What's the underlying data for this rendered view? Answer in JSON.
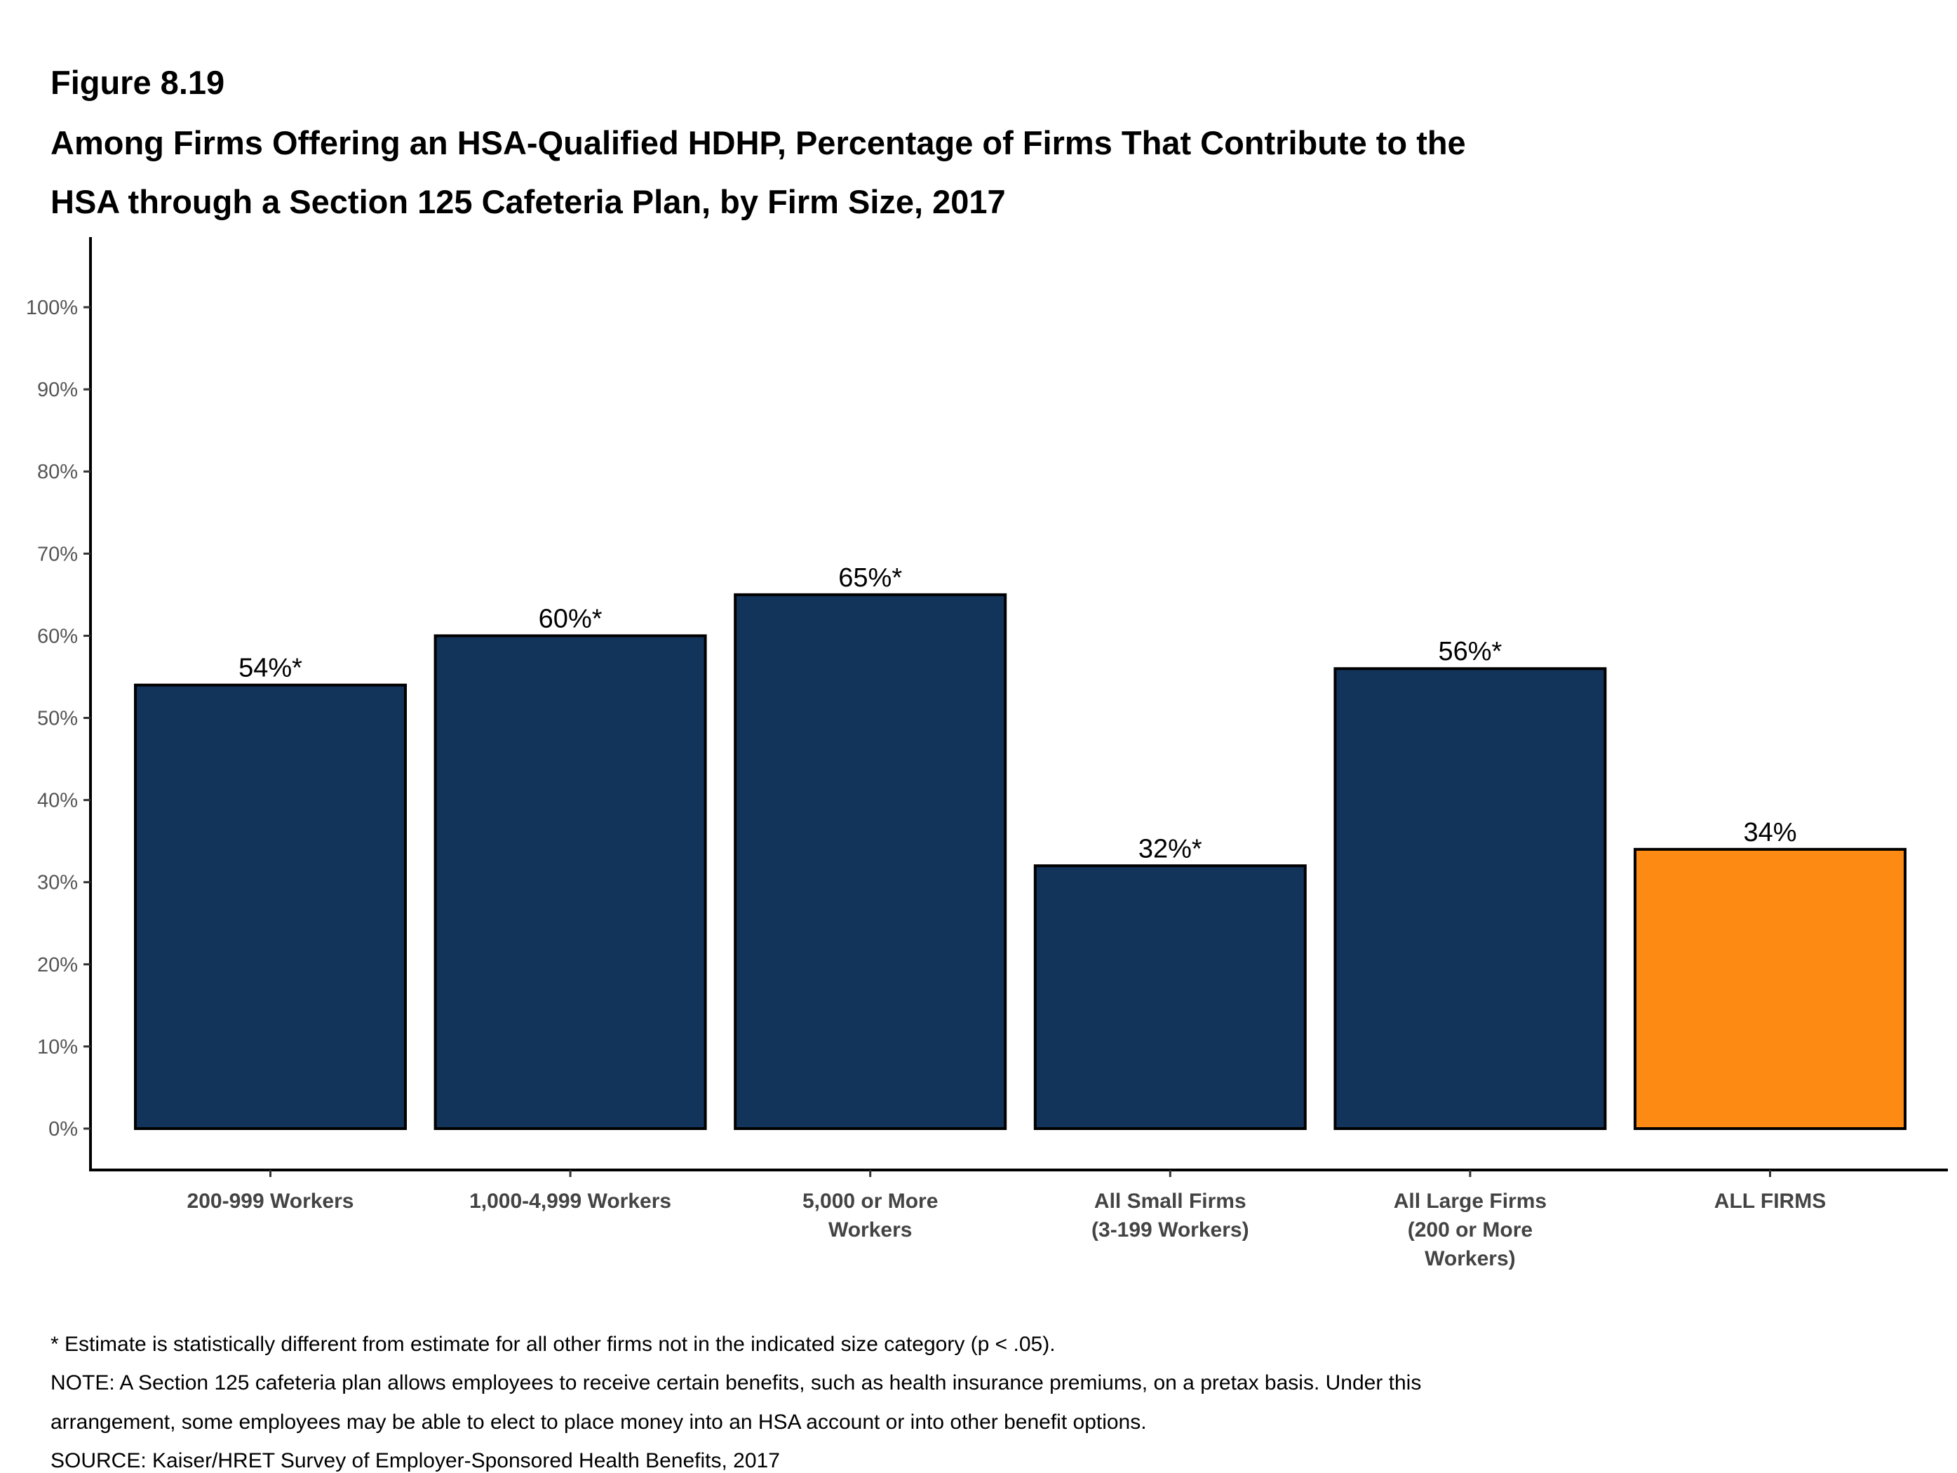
{
  "figure_label": "Figure 8.19",
  "title_lines": [
    "Among Firms Offering an HSA-Qualified HDHP, Percentage of Firms That Contribute to the",
    "HSA through a Section 125 Cafeteria Plan, by Firm Size, 2017"
  ],
  "notes": [
    "* Estimate is statistically different from estimate for all other firms not in the indicated size category (p < .05).",
    "NOTE: A Section 125 cafeteria plan allows employees to receive certain benefits, such as health insurance premiums, on a pretax basis. Under this",
    "arrangement, some employees may be able to elect to place money into an HSA account or into other benefit options.",
    "SOURCE: Kaiser/HRET Survey of Employer-Sponsored Health Benefits, 2017"
  ],
  "colors": {
    "bar": "#13345a",
    "highlight": "#fd8b13",
    "outline": "#000000"
  },
  "chart_data": {
    "type": "bar",
    "categories": [
      [
        "200-999 Workers"
      ],
      [
        "1,000-4,999 Workers"
      ],
      [
        "5,000 or More",
        "Workers"
      ],
      [
        "All Small Firms",
        "(3-199 Workers)"
      ],
      [
        "All Large Firms",
        "(200 or More",
        "Workers)"
      ],
      [
        "ALL FIRMS"
      ]
    ],
    "values": [
      54,
      60,
      65,
      32,
      56,
      34
    ],
    "data_labels": [
      "54%*",
      "60%*",
      "65%*",
      "32%*",
      "56%*",
      "34%"
    ],
    "highlight_index": 5,
    "ylim": [
      0,
      100
    ],
    "yticks": [
      0,
      10,
      20,
      30,
      40,
      50,
      60,
      70,
      80,
      90,
      100
    ],
    "ytick_labels": [
      "0%",
      "10%",
      "20%",
      "30%",
      "40%",
      "50%",
      "60%",
      "70%",
      "80%",
      "90%",
      "100%"
    ],
    "grid": false,
    "xlabel": "",
    "ylabel": ""
  }
}
